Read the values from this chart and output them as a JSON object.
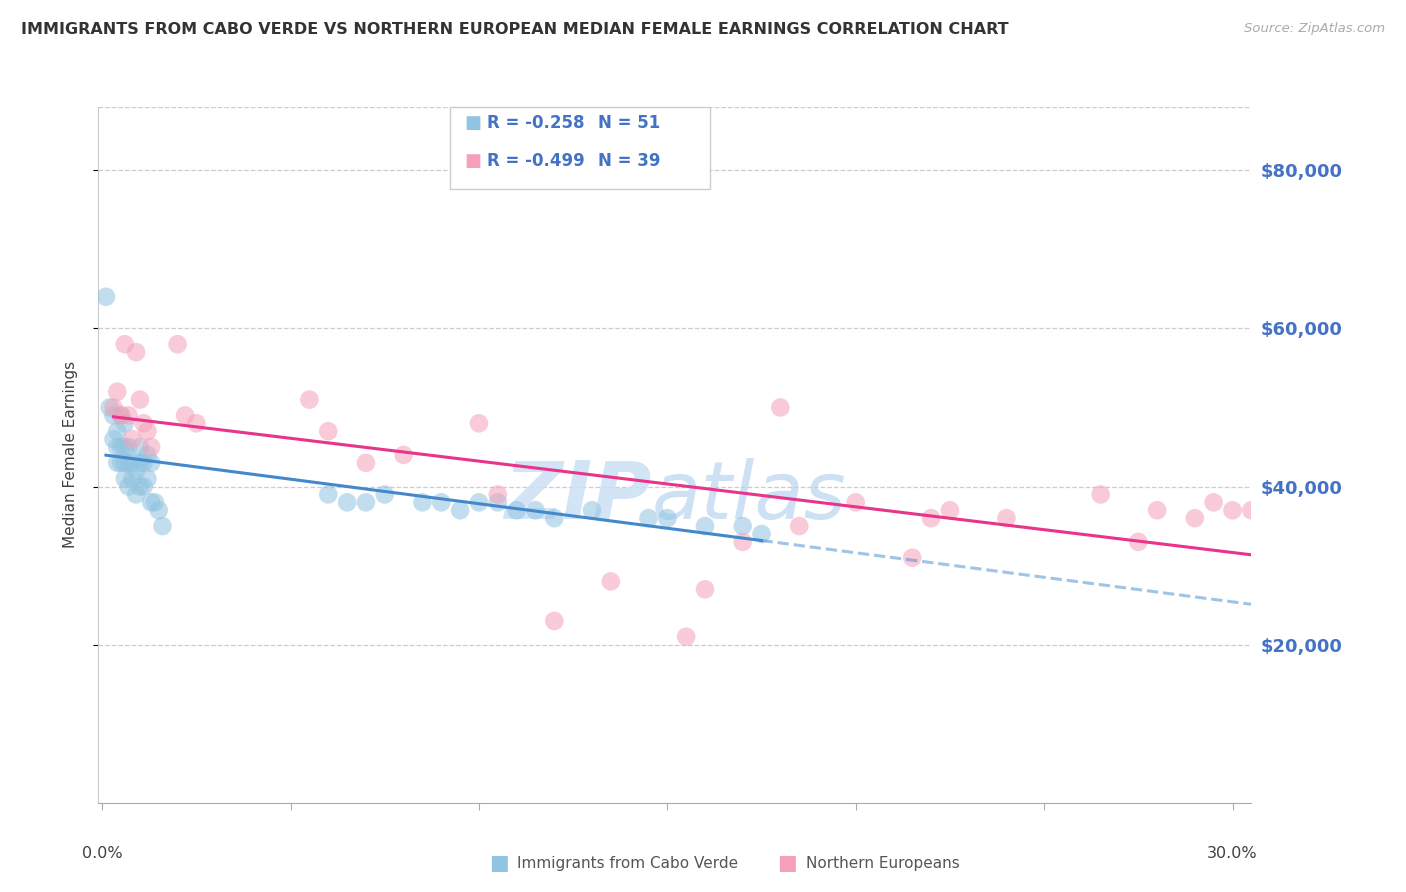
{
  "title": "IMMIGRANTS FROM CABO VERDE VS NORTHERN EUROPEAN MEDIAN FEMALE EARNINGS CORRELATION CHART",
  "source": "Source: ZipAtlas.com",
  "ylabel": "Median Female Earnings",
  "ytick_labels": [
    "$20,000",
    "$40,000",
    "$60,000",
    "$80,000"
  ],
  "ytick_values": [
    20000,
    40000,
    60000,
    80000
  ],
  "ylim": [
    0,
    88000
  ],
  "xlim": [
    -0.001,
    0.305
  ],
  "legend_label1": "Immigrants from Cabo Verde",
  "legend_label2": "Northern Europeans",
  "legend_R1": "-0.258",
  "legend_N1": "51",
  "legend_R2": "-0.499",
  "legend_N2": "39",
  "color_blue": "#91c4e0",
  "color_pink": "#f5a0b8",
  "color_blue_line": "#4488cc",
  "color_pink_line": "#e8348a",
  "color_axis_blue": "#4472C4",
  "cabo_verde_x": [
    0.001,
    0.002,
    0.003,
    0.003,
    0.004,
    0.004,
    0.004,
    0.005,
    0.005,
    0.005,
    0.006,
    0.006,
    0.006,
    0.006,
    0.007,
    0.007,
    0.007,
    0.008,
    0.008,
    0.009,
    0.009,
    0.01,
    0.01,
    0.01,
    0.011,
    0.011,
    0.012,
    0.012,
    0.013,
    0.013,
    0.014,
    0.015,
    0.016,
    0.06,
    0.065,
    0.07,
    0.075,
    0.085,
    0.09,
    0.095,
    0.1,
    0.105,
    0.11,
    0.115,
    0.12,
    0.13,
    0.145,
    0.15,
    0.16,
    0.17,
    0.175
  ],
  "cabo_verde_y": [
    64000,
    50000,
    49000,
    46000,
    47000,
    45000,
    43000,
    49000,
    45000,
    43000,
    48000,
    45000,
    43000,
    41000,
    45000,
    43000,
    40000,
    43000,
    41000,
    42000,
    39000,
    45000,
    43000,
    40000,
    43000,
    40000,
    44000,
    41000,
    43000,
    38000,
    38000,
    37000,
    35000,
    39000,
    38000,
    38000,
    39000,
    38000,
    38000,
    37000,
    38000,
    38000,
    37000,
    37000,
    36000,
    37000,
    36000,
    36000,
    35000,
    35000,
    34000
  ],
  "northern_euro_x": [
    0.003,
    0.004,
    0.005,
    0.006,
    0.007,
    0.008,
    0.009,
    0.01,
    0.011,
    0.012,
    0.013,
    0.02,
    0.022,
    0.025,
    0.055,
    0.06,
    0.07,
    0.08,
    0.1,
    0.105,
    0.12,
    0.135,
    0.155,
    0.16,
    0.17,
    0.18,
    0.185,
    0.2,
    0.215,
    0.22,
    0.225,
    0.24,
    0.265,
    0.275,
    0.28,
    0.29,
    0.295,
    0.3,
    0.305
  ],
  "northern_euro_y": [
    50000,
    52000,
    49000,
    58000,
    49000,
    46000,
    57000,
    51000,
    48000,
    47000,
    45000,
    58000,
    49000,
    48000,
    51000,
    47000,
    43000,
    44000,
    48000,
    39000,
    23000,
    28000,
    21000,
    27000,
    33000,
    50000,
    35000,
    38000,
    31000,
    36000,
    37000,
    36000,
    39000,
    33000,
    37000,
    36000,
    38000,
    37000,
    37000
  ]
}
